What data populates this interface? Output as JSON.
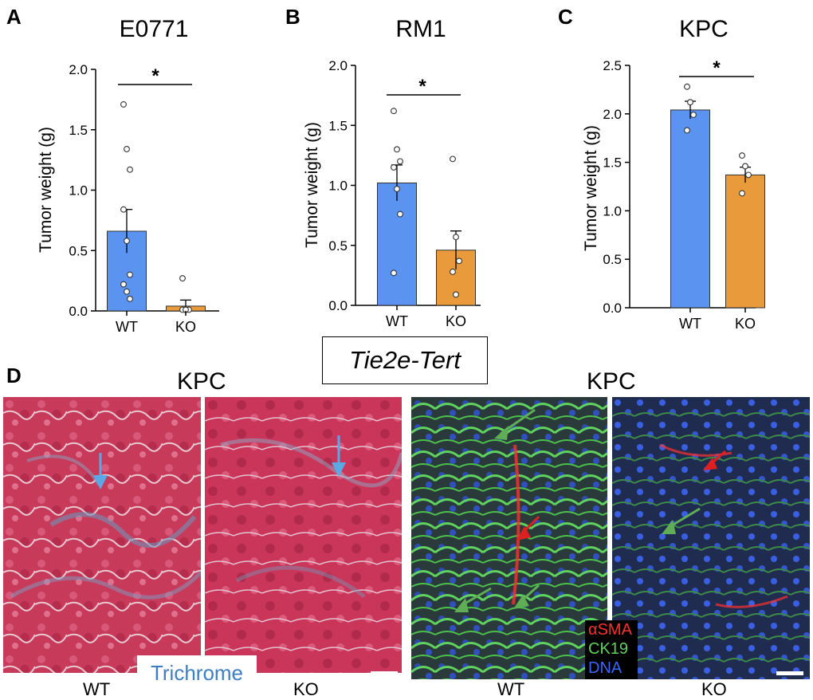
{
  "panels": {
    "A": {
      "letter": "A",
      "title": "E0771",
      "ylabel": "Tumor weight (g)",
      "significance": "*"
    },
    "B": {
      "letter": "B",
      "title": "RM1",
      "ylabel": "Tumor weight (g)",
      "significance": "*"
    },
    "C": {
      "letter": "C",
      "title": "KPC",
      "ylabel": "Tumor weight (g)",
      "significance": "*"
    },
    "D": {
      "letter": "D"
    }
  },
  "genotype_label": "Tie2e-Tert",
  "colors": {
    "wt": "#5b93f0",
    "ko": "#e99a3a",
    "trichrome_text": "#3e7fc4",
    "green_arrow": "#5fae56",
    "red_arrow": "#e02020",
    "blue_arrow": "#5aa9e6"
  },
  "chart_data": [
    {
      "type": "bar",
      "title": "E0771",
      "ylabel": "Tumor weight (g)",
      "categories": [
        "WT",
        "KO"
      ],
      "values": [
        0.66,
        0.04
      ],
      "sem": [
        0.18,
        0.05
      ],
      "ylim": [
        0,
        2.0
      ],
      "yticks": [
        "0.0",
        "0.5",
        "1.0",
        "1.5",
        "2.0"
      ],
      "points": [
        [
          1.71,
          1.34,
          1.17,
          0.84,
          0.58,
          0.3,
          0.22,
          0.16,
          0.1
        ],
        [
          0.27,
          0.01,
          0.01,
          0.01,
          0.01
        ]
      ],
      "significance": "*"
    },
    {
      "type": "bar",
      "title": "RM1",
      "ylabel": "Tumor weight (g)",
      "categories": [
        "WT",
        "KO"
      ],
      "values": [
        1.02,
        0.46
      ],
      "sem": [
        0.15,
        0.16
      ],
      "ylim": [
        0,
        2.0
      ],
      "yticks": [
        "0.0",
        "0.5",
        "1.0",
        "1.5",
        "2.0"
      ],
      "points": [
        [
          1.62,
          1.3,
          1.2,
          1.15,
          0.97,
          0.76,
          0.27
        ],
        [
          1.22,
          0.57,
          0.37,
          0.28,
          0.09
        ]
      ],
      "significance": "*"
    },
    {
      "type": "bar",
      "title": "KPC",
      "ylabel": "Tumor weight (g)",
      "categories": [
        "WT",
        "KO"
      ],
      "values": [
        2.04,
        1.37
      ],
      "sem": [
        0.09,
        0.08
      ],
      "ylim": [
        0,
        2.5
      ],
      "yticks": [
        "0.0",
        "0.5",
        "1.0",
        "1.5",
        "2.0",
        "2.5"
      ],
      "points": [
        [
          2.28,
          2.12,
          1.99,
          1.83
        ],
        [
          1.57,
          1.46,
          1.37,
          1.18
        ]
      ],
      "significance": "*"
    }
  ],
  "panel_d": {
    "left_title": "KPC",
    "right_title": "KPC",
    "left_captions": [
      "WT",
      "KO"
    ],
    "right_captions": [
      "WT",
      "KO"
    ],
    "stain_label": "Trichrome",
    "legend": [
      {
        "label": "αSMA",
        "color": "#ff3030"
      },
      {
        "label": "CK19",
        "color": "#5fd25f"
      },
      {
        "label": "DNA",
        "color": "#3b66ff"
      }
    ]
  }
}
